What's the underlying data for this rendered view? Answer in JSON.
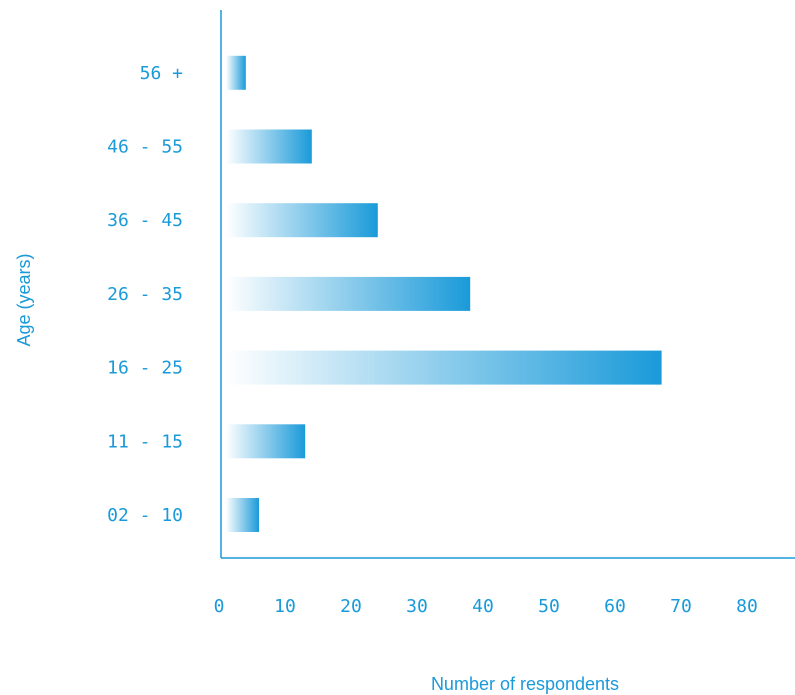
{
  "chart_data": {
    "type": "bar",
    "orientation": "horizontal",
    "title": "",
    "xlabel": "Number of respondents",
    "ylabel": "Age (years)",
    "categories": [
      "02 - 10",
      "11 - 15",
      "16 - 25",
      "26 - 35",
      "36 - 45",
      "46 - 55",
      "56 +"
    ],
    "values": [
      5,
      12,
      66,
      37,
      23,
      13,
      3
    ],
    "xlim": [
      0,
      80
    ],
    "xticks": [
      "0",
      "10",
      "20",
      "30",
      "40",
      "50",
      "60",
      "70",
      "80"
    ],
    "grid": false,
    "legend": "none",
    "colors": {
      "axis": "#1a9ad9",
      "text": "#1a9ad9",
      "bar_start": "#ffffff",
      "bar_end": "#1a9ad9"
    }
  }
}
